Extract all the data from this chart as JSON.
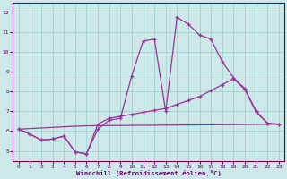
{
  "xlabel": "Windchill (Refroidissement éolien,°C)",
  "bg_color": "#cce8e8",
  "line_color": "#993399",
  "grid_color": "#99cccc",
  "xlim": [
    -0.5,
    23.5
  ],
  "ylim": [
    4.5,
    12.5
  ],
  "yticks": [
    5,
    6,
    7,
    8,
    9,
    10,
    11,
    12
  ],
  "xticks": [
    0,
    1,
    2,
    3,
    4,
    5,
    6,
    7,
    8,
    9,
    10,
    11,
    12,
    13,
    14,
    15,
    16,
    17,
    18,
    19,
    20,
    21,
    22,
    23
  ],
  "series1_x": [
    0,
    1,
    2,
    3,
    4,
    5,
    6,
    7,
    8,
    9,
    10,
    11,
    12,
    13,
    14,
    15,
    16,
    17,
    18,
    19,
    20,
    21,
    22,
    23
  ],
  "series1_y": [
    6.1,
    5.85,
    5.55,
    5.6,
    5.75,
    4.95,
    4.85,
    6.1,
    6.55,
    6.65,
    8.8,
    10.55,
    10.65,
    7.0,
    11.75,
    11.4,
    10.85,
    10.65,
    9.5,
    8.7,
    8.15,
    7.0,
    6.4,
    6.35
  ],
  "series2_x": [
    0,
    1,
    2,
    3,
    4,
    5,
    6,
    7,
    8,
    9,
    10,
    11,
    12,
    13,
    14,
    15,
    16,
    17,
    18,
    19,
    20,
    21,
    22,
    23
  ],
  "series2_y": [
    6.1,
    5.85,
    5.55,
    5.6,
    5.75,
    4.95,
    4.85,
    6.35,
    6.65,
    6.75,
    6.85,
    6.95,
    7.05,
    7.15,
    7.35,
    7.55,
    7.75,
    8.05,
    8.35,
    8.65,
    8.1,
    6.95,
    6.4,
    6.35
  ],
  "series3_x": [
    0,
    5,
    6,
    23
  ],
  "series3_y": [
    6.1,
    6.25,
    6.27,
    6.35
  ]
}
